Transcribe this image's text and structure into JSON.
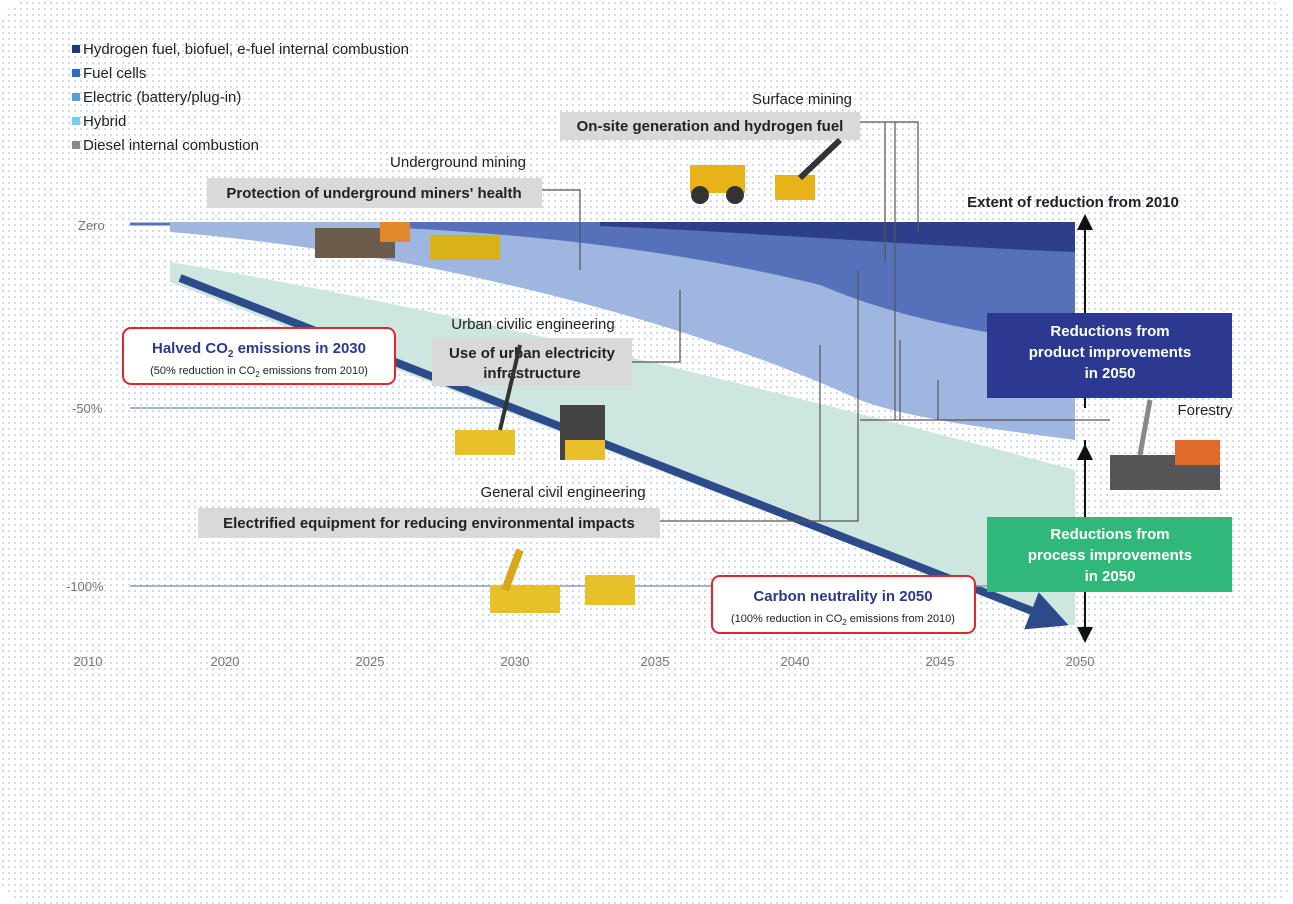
{
  "legend": [
    "Hydrogen fuel, biofuel, e-fuel internal combustion",
    "Fuel cells",
    "Electric (battery/plug-in)",
    "Hybrid",
    "Diesel internal combustion"
  ],
  "axis": {
    "y_labels": [
      "Zero",
      "-50%",
      "-100%"
    ],
    "x_labels": [
      "2010",
      "2020",
      "2025",
      "2030",
      "2035",
      "2040",
      "2045",
      "2050"
    ]
  },
  "sections": {
    "surface_mining": {
      "title": "Surface mining",
      "label": "On-site generation and hydrogen fuel"
    },
    "underground_mining": {
      "title": "Underground mining",
      "label": "Protection of underground miners' health"
    },
    "urban_civil": {
      "title": "Urban civilic engineering",
      "label": [
        "Use of urban electricity",
        "infrastructure"
      ]
    },
    "general_civil": {
      "title": "General civil engineering",
      "label": "Electrified equipment for reducing environmental impacts"
    },
    "forestry": {
      "title": "Forestry"
    }
  },
  "extent_title": "Extent of reduction from 2010",
  "product_box": [
    "Reductions from",
    "product improvements",
    "in 2050"
  ],
  "process_box": [
    "Reductions from",
    "process improvements",
    "in 2050"
  ],
  "targets": [
    {
      "title": [
        "Halved CO",
        "2",
        " emissions in 2030"
      ],
      "note": [
        "(50% reduction in CO",
        "2",
        " emissions from 2010)"
      ]
    },
    {
      "title": "Carbon neutrality in 2050",
      "note": [
        "(100% reduction in CO",
        "2",
        " emissions from 2010)"
      ]
    }
  ]
}
